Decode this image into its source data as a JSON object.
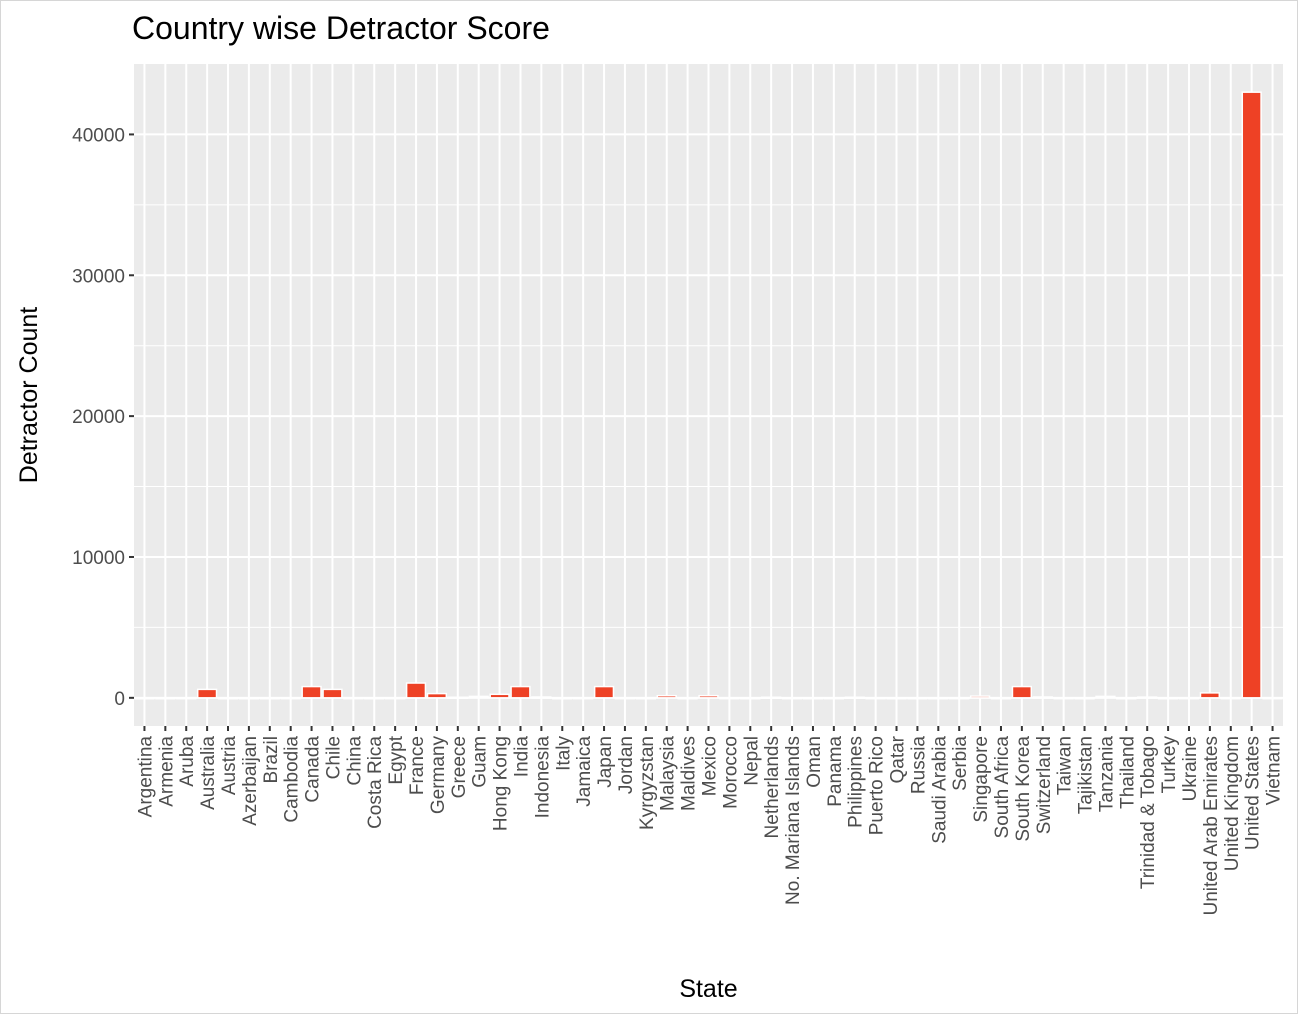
{
  "chart_data": {
    "type": "bar",
    "title": "Country wise Detractor Score",
    "xlabel": "State",
    "ylabel": "Detractor Count",
    "ylim": [
      -2000,
      45000
    ],
    "yticks": [
      0,
      10000,
      20000,
      30000,
      40000
    ],
    "ytick_labels": [
      "0",
      "10000",
      "20000",
      "30000",
      "40000"
    ],
    "grid": true,
    "legend": "none",
    "bar_color": "#ee4125",
    "panel_color": "#ebebeb",
    "categories": [
      "Argentina",
      "Armenia",
      "Aruba",
      "Australia",
      "Austria",
      "Azerbaijan",
      "Brazil",
      "Cambodia",
      "Canada",
      "Chile",
      "China",
      "Costa Rica",
      "Egypt",
      "France",
      "Germany",
      "Greece",
      "Guam",
      "Hong Kong",
      "India",
      "Indonesia",
      "Italy",
      "Jamaica",
      "Japan",
      "Jordan",
      "Kyrgyzstan",
      "Malaysia",
      "Maldives",
      "Mexico",
      "Morocco",
      "Nepal",
      "Netherlands",
      "No. Mariana Islands",
      "Oman",
      "Panama",
      "Philippines",
      "Puerto Rico",
      "Qatar",
      "Russia",
      "Saudi Arabia",
      "Serbia",
      "Singapore",
      "South Africa",
      "South Korea",
      "Switzerland",
      "Taiwan",
      "Tajikistan",
      "Tanzania",
      "Thailand",
      "Trinidad & Tobago",
      "Turkey",
      "Ukraine",
      "United Arab Emirates",
      "United Kingdom",
      "United States",
      "Vietnam"
    ],
    "values": [
      5,
      5,
      10,
      600,
      5,
      5,
      5,
      10,
      800,
      600,
      10,
      5,
      10,
      1050,
      300,
      40,
      100,
      250,
      800,
      60,
      5,
      10,
      800,
      10,
      5,
      150,
      5,
      150,
      10,
      5,
      40,
      10,
      5,
      10,
      40,
      10,
      5,
      5,
      5,
      10,
      120,
      5,
      800,
      60,
      10,
      5,
      100,
      5,
      50,
      5,
      10,
      350,
      10,
      43000,
      10
    ]
  }
}
